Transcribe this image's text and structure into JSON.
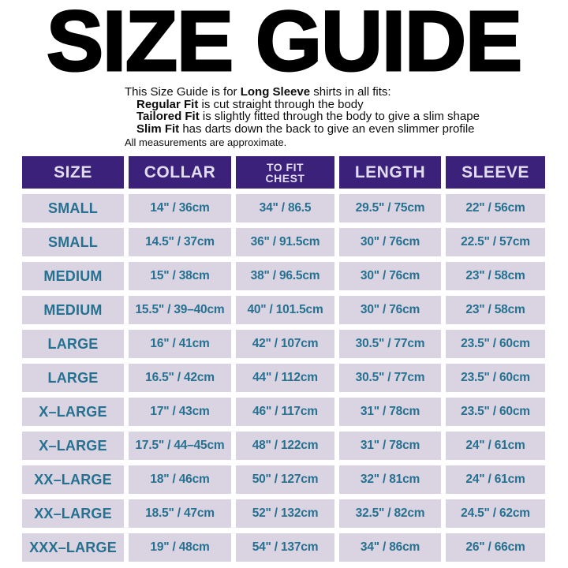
{
  "title": "SIZE GUIDE",
  "intro": {
    "line1": {
      "pre": "This Size Guide is for ",
      "bold": "Long Sleeve",
      "post": " shirts in all fits:"
    },
    "fits": [
      {
        "bold": "Regular Fit",
        "rest": " is cut straight through the body"
      },
      {
        "bold": "Tailored Fit",
        "rest": " is slightly fitted through the body to give a slim shape"
      },
      {
        "bold": "Slim Fit",
        "rest": " has darts down the back to give an even slimmer profile"
      }
    ],
    "note": "All measurements are approximate."
  },
  "table": {
    "columns": [
      {
        "label": "SIZE"
      },
      {
        "label": "COLLAR"
      },
      {
        "label": "TO FIT",
        "label2": "CHEST"
      },
      {
        "label": "LENGTH"
      },
      {
        "label": "SLEEVE"
      }
    ],
    "rows": [
      [
        "SMALL",
        "14\" / 36cm",
        "34\" / 86.5",
        "29.5\" / 75cm",
        "22\" / 56cm"
      ],
      [
        "SMALL",
        "14.5\" / 37cm",
        "36\" / 91.5cm",
        "30\" / 76cm",
        "22.5\" / 57cm"
      ],
      [
        "MEDIUM",
        "15\" / 38cm",
        "38\" / 96.5cm",
        "30\" / 76cm",
        "23\" / 58cm"
      ],
      [
        "MEDIUM",
        "15.5\" / 39–40cm",
        "40\" / 101.5cm",
        "30\" / 76cm",
        "23\" / 58cm"
      ],
      [
        "LARGE",
        "16\" / 41cm",
        "42\" / 107cm",
        "30.5\" / 77cm",
        "23.5\" / 60cm"
      ],
      [
        "LARGE",
        "16.5\" / 42cm",
        "44\" / 112cm",
        "30.5\" / 77cm",
        "23.5\" / 60cm"
      ],
      [
        "X–LARGE",
        "17\" / 43cm",
        "46\" / 117cm",
        "31\" / 78cm",
        "23.5\" / 60cm"
      ],
      [
        "X–LARGE",
        "17.5\" / 44–45cm",
        "48\" / 122cm",
        "31\" / 78cm",
        "24\" / 61cm"
      ],
      [
        "XX–LARGE",
        "18\" / 46cm",
        "50\" / 127cm",
        "32\" / 81cm",
        "24\" / 61cm"
      ],
      [
        "XX–LARGE",
        "18.5\" / 47cm",
        "52\" / 132cm",
        "32.5\" / 82cm",
        "24.5\" / 62cm"
      ],
      [
        "XXX–LARGE",
        "19\" / 48cm",
        "54\" / 137cm",
        "34\" / 86cm",
        "26\" / 66cm"
      ]
    ]
  },
  "colors": {
    "title_text": "#000000",
    "header_bg": "#3b217a",
    "header_text": "#e2ddee",
    "row_bg": "#d9d3e2",
    "value_text": "#26718f",
    "background": "#ffffff"
  }
}
